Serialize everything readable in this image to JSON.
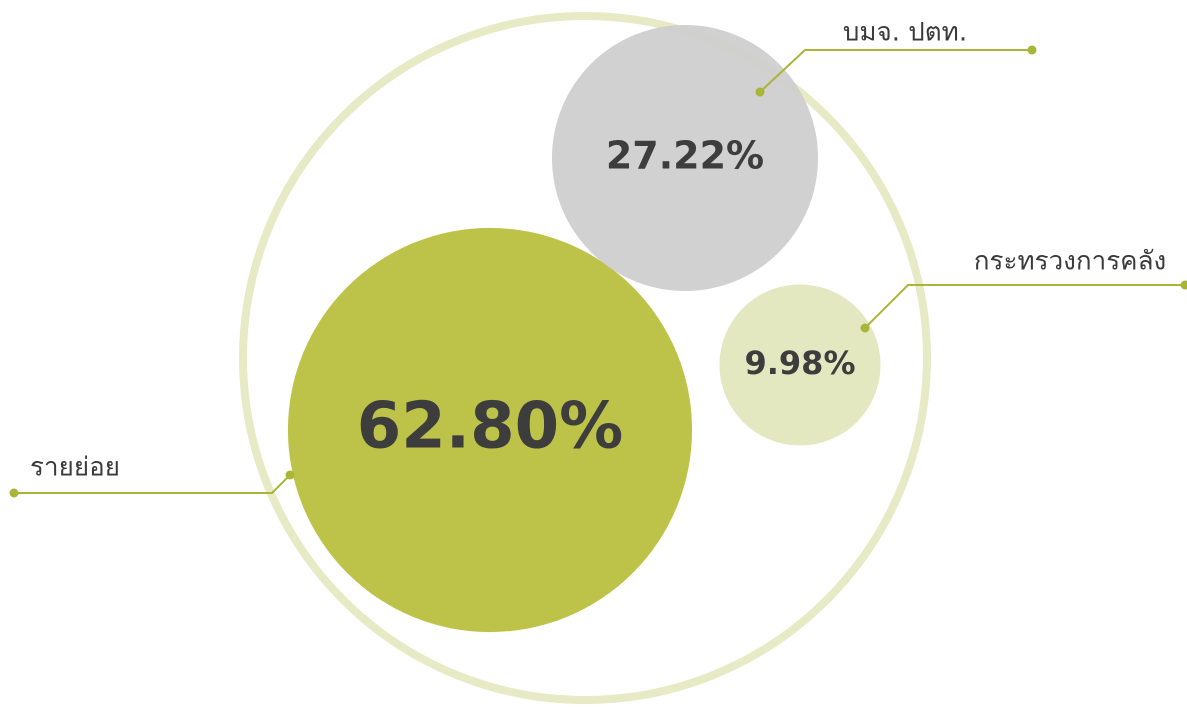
{
  "chart_data": {
    "type": "bubble",
    "categories": [
      "รายย่อย",
      "บมจ. ปตท.",
      "กระทรวงการคลัง"
    ],
    "values": [
      62.8,
      27.22,
      9.98
    ],
    "value_labels": [
      "62.80%",
      "27.22%",
      "9.98%"
    ],
    "colors": [
      "#b9c03e",
      "#cfcfcf",
      "#e3e7bd"
    ]
  }
}
